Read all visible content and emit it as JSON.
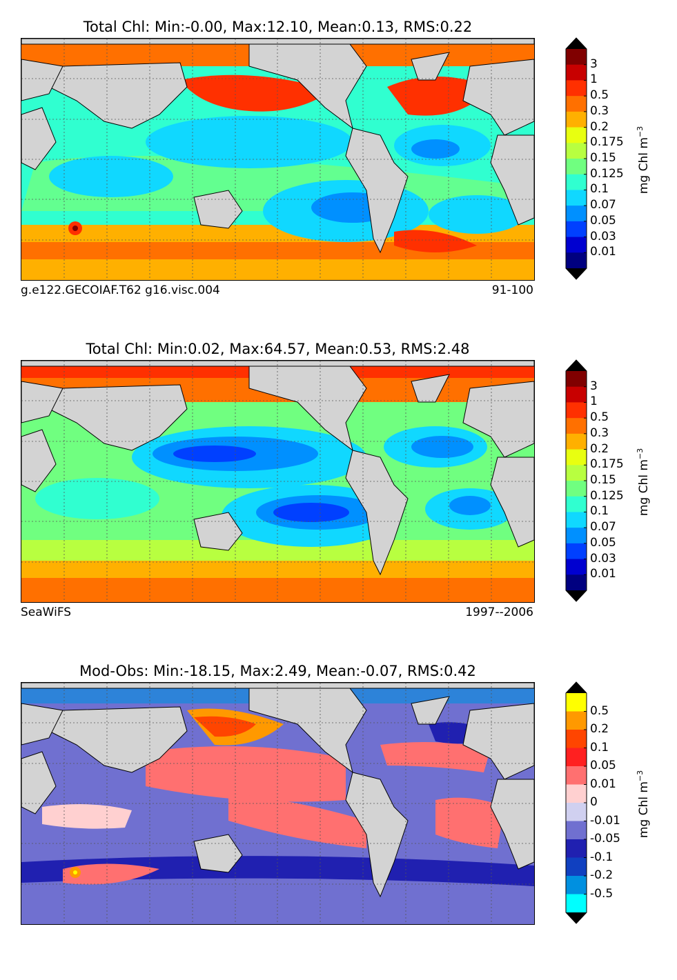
{
  "panels": [
    {
      "id": "model",
      "title": "Total Chl: Min:-0.00, Max:12.10, Mean:0.13, RMS:0.22",
      "source_left": "g.e122.GECOIAF.T62 g16.visc.004",
      "source_right": "91-100",
      "colorbar": {
        "unit": "mg Chl m",
        "unit_exp": "−3",
        "ticks": [
          "3",
          "1",
          "0.5",
          "0.3",
          "0.2",
          "0.175",
          "0.15",
          "0.125",
          "0.1",
          "0.07",
          "0.05",
          "0.03",
          "0.01"
        ],
        "colors": [
          "#800000",
          "#c80000",
          "#ff3000",
          "#ff7000",
          "#ffb000",
          "#e8ff10",
          "#b8ff40",
          "#70ff80",
          "#30ffd0",
          "#10d8ff",
          "#0090ff",
          "#0040ff",
          "#0000d0",
          "#000080"
        ]
      }
    },
    {
      "id": "obs",
      "title": "Total Chl: Min:0.02, Max:64.57, Mean:0.53, RMS:2.48",
      "source_left": "SeaWiFS",
      "source_right": "1997--2006",
      "colorbar": {
        "unit": "mg Chl m",
        "unit_exp": "−3",
        "ticks": [
          "3",
          "1",
          "0.5",
          "0.3",
          "0.2",
          "0.175",
          "0.15",
          "0.125",
          "0.1",
          "0.07",
          "0.05",
          "0.03",
          "0.01"
        ],
        "colors": [
          "#800000",
          "#c80000",
          "#ff3000",
          "#ff7000",
          "#ffb000",
          "#e8ff10",
          "#b8ff40",
          "#70ff80",
          "#30ffd0",
          "#10d8ff",
          "#0090ff",
          "#0040ff",
          "#0000d0",
          "#000080"
        ]
      }
    },
    {
      "id": "diff",
      "title": "Mod-Obs: Min:-18.15, Max:2.49, Mean:-0.07, RMS:0.42",
      "source_left": "",
      "source_right": "",
      "colorbar": {
        "unit": "mg Chl m",
        "unit_exp": "−3",
        "ticks": [
          "0.5",
          "0.2",
          "0.1",
          "0.05",
          "0.01",
          "0",
          "-0.01",
          "-0.05",
          "-0.1",
          "-0.2",
          "-0.5"
        ],
        "colors": [
          "#ffff00",
          "#ff9900",
          "#ff4500",
          "#ff2020",
          "#ff7070",
          "#ffd0d0",
          "#d0d0f0",
          "#7070d0",
          "#2020b0",
          "#1040c0",
          "#0090e0",
          "#00ffff"
        ]
      }
    }
  ]
}
